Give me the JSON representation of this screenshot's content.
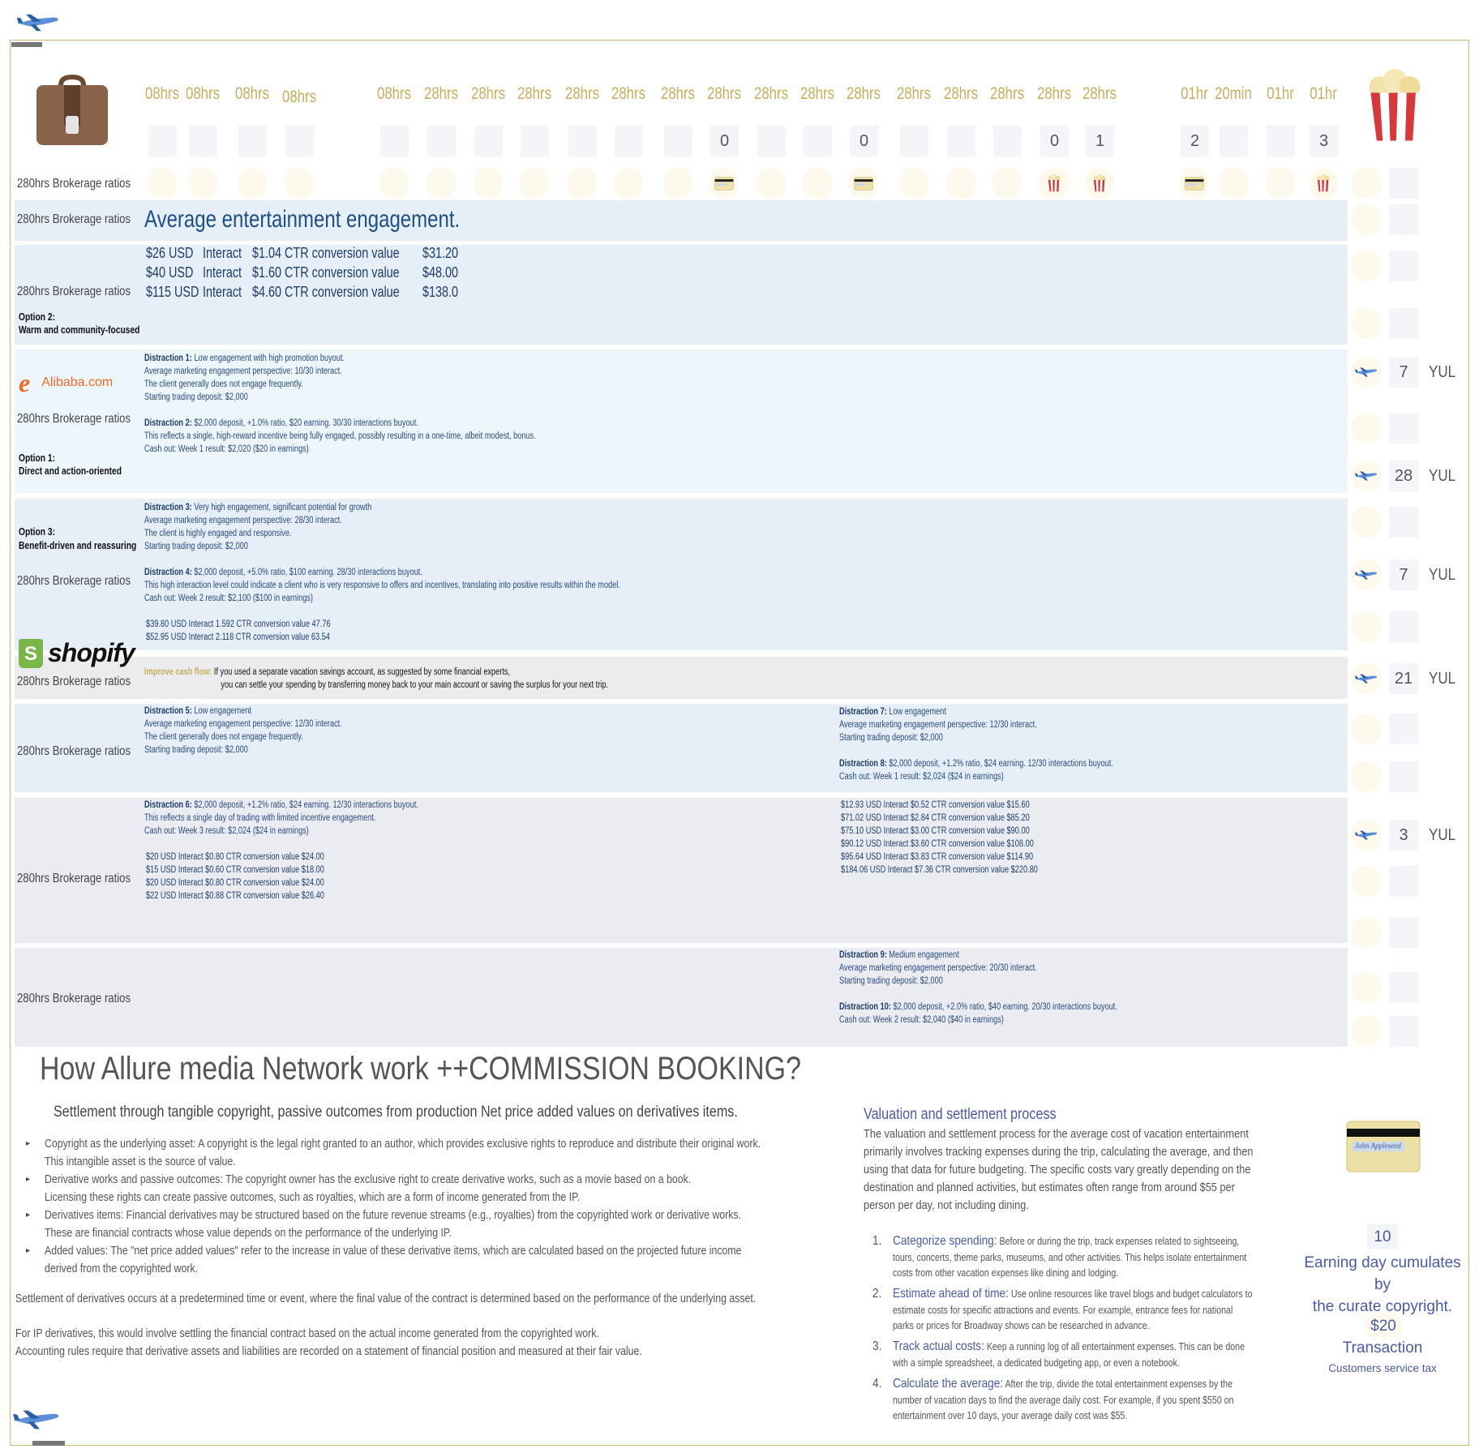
{
  "colors": {
    "accent_gold": "#c9ad5c",
    "navy": "#1f3d6b",
    "frame": "#cdb76c",
    "link_blue": "#4a5aa8"
  },
  "header": {
    "icons": {
      "left": "briefcase-icon",
      "right": "popcorn-icon",
      "top": "airplane-icon"
    },
    "row_label": "280hrs Brokerage ratios",
    "columns": [
      {
        "label": "08hrs",
        "count": "",
        "icon": ""
      },
      {
        "label": "08hrs",
        "count": "",
        "icon": ""
      },
      {
        "label": "08hrs",
        "count": "",
        "icon": ""
      },
      {
        "label": "08hrs",
        "count": "",
        "icon": ""
      },
      {
        "label": "08hrs",
        "count": "",
        "icon": ""
      },
      {
        "label": "28hrs",
        "count": "",
        "icon": ""
      },
      {
        "label": "28hrs",
        "count": "",
        "icon": ""
      },
      {
        "label": "28hrs",
        "count": "",
        "icon": ""
      },
      {
        "label": "28hrs",
        "count": "",
        "icon": ""
      },
      {
        "label": "28hrs",
        "count": "",
        "icon": ""
      },
      {
        "label": "28hrs",
        "count": "",
        "icon": ""
      },
      {
        "label": "28hrs",
        "count": "0",
        "icon": "credit-card"
      },
      {
        "label": "28hrs",
        "count": "",
        "icon": ""
      },
      {
        "label": "28hrs",
        "count": "",
        "icon": ""
      },
      {
        "label": "28hrs",
        "count": "0",
        "icon": "credit-card"
      },
      {
        "label": "28hrs",
        "count": "",
        "icon": ""
      },
      {
        "label": "28hrs",
        "count": "",
        "icon": ""
      },
      {
        "label": "28hrs",
        "count": "",
        "icon": ""
      },
      {
        "label": "28hrs",
        "count": "0",
        "icon": "popcorn"
      },
      {
        "label": "28hrs",
        "count": "1",
        "icon": "popcorn"
      },
      {
        "label": "01hr",
        "count": "2",
        "icon": "credit-card"
      },
      {
        "label": "20min",
        "count": "",
        "icon": ""
      },
      {
        "label": "01hr",
        "count": "",
        "icon": ""
      },
      {
        "label": "01hr",
        "count": "3",
        "icon": "popcorn"
      }
    ]
  },
  "row_a": {
    "label": "280hrs Brokerage ratios",
    "title": "Average entertainment engagement."
  },
  "row_b": {
    "label": "280hrs Brokerage ratios",
    "prices": [
      [
        "$26 USD",
        "Interact",
        "$1.04 CTR conversion value",
        "$31.20"
      ],
      [
        "$40 USD",
        "Interact",
        "$1.60 CTR conversion value",
        "$48.00"
      ],
      [
        "$115 USD",
        "Interact",
        "$4.60 CTR conversion value",
        "$138.0"
      ]
    ],
    "option_title": "Option 2:",
    "option_desc": "Warm and community-focused"
  },
  "row_c": {
    "label": "280hrs Brokerage ratios",
    "logo": "Alibaba.com",
    "option_title": "Option 1:",
    "option_desc": "Direct and action-oriented",
    "d1_head": "Distraction 1:",
    "d1_text": " Low engagement with high promotion buyout.",
    "d1_lines": [
      "Average marketing engagement perspective: 10/30 interact.",
      "The client generally does not engage frequently.",
      "Starting trading deposit: $2,000"
    ],
    "d2_head": "Distraction 2:",
    "d2_text": " $2,000 deposit, +1.0% ratio, $20 earning. 30/30 interactions buyout.",
    "d2_lines": [
      "This reflects a single, high-reward incentive being fully engaged, possibly resulting in a one-time, albeit modest, bonus.",
      "Cash out: Week 1 result: $2,020 ($20 in earnings)"
    ]
  },
  "row_d": {
    "label": "280hrs Brokerage ratios",
    "option_title": "Option 3:",
    "option_desc": "Benefit-driven and reassuring",
    "d3_head": "Distraction 3:",
    "d3_text": " Very high engagement, significant potential for growth",
    "d3_lines": [
      "Average marketing engagement perspective: 28/30 interact.",
      "The client is highly engaged and responsive.",
      "Starting trading deposit: $2,000"
    ],
    "d4_head": "Distraction 4:",
    "d4_text": " $2,000 deposit, +5.0% ratio, $100 earning. 28/30 interactions buyout.",
    "d4_lines": [
      "This high interaction level could indicate a client who is very responsive to offers and incentives, translating into positive results within the model.",
      "Cash out: Week 2 result: $2,100 ($100 in earnings)"
    ],
    "prices": [
      "$39.80 USD Interact  1.592 CTR conversion value 47.76",
      "$52.95 USD Interact  2.118 CTR conversion value 63.54"
    ]
  },
  "row_e": {
    "label": "280hrs Brokerage ratios",
    "logo": "shopify",
    "head": "Improve cash flow:",
    "line1": " If you used a separate vacation savings account, as suggested by some financial experts,",
    "line2": "you can settle your spending by transferring money back to your main account or saving the surplus for your next trip."
  },
  "row_f": {
    "label": "280hrs Brokerage ratios",
    "d5_head": "Distraction 5:",
    "d5_text": " Low engagement",
    "d5_lines": [
      "Average marketing engagement perspective: 12/30 interact.",
      "The client generally does not engage frequently.",
      "Starting trading deposit: $2,000"
    ],
    "d7_head": "Distraction 7:",
    "d7_text": " Low engagement",
    "d7_lines": [
      "Average marketing engagement perspective: 12/30 interact.",
      "Starting trading deposit: $2,000"
    ],
    "d8_head": "Distraction 8:",
    "d8_text": " $2,000 deposit, +1.2% ratio, $24 earning. 12/30 interactions buyout.",
    "d8_lines": [
      "Cash out: Week 1 result: $2,024 ($24 in earnings)"
    ]
  },
  "row_g": {
    "label": "280hrs Brokerage ratios",
    "d6_head": "Distraction 6:",
    "d6_text": " $2,000 deposit, +1.2% ratio, $24 earning. 12/30 interactions buyout.",
    "d6_lines": [
      "This reflects a single day of trading with limited incentive engagement.",
      "Cash out: Week 3 result: $2,024 ($24 in earnings)"
    ],
    "prices_left": [
      "$20 USD Interact $0.80 CTR conversion value $24.00",
      "$15 USD Interact $0.60 CTR conversion value $18.00",
      "$20 USD Interact $0.80 CTR conversion value $24.00",
      "$22 USD Interact $0.88 CTR conversion value $26.40"
    ],
    "prices_right": [
      "$12.93 USD Interact  $0.52 CTR conversion value $15.60",
      "$71.02 USD Interact  $2.84 CTR conversion value $85.20",
      "$75.10 USD Interact  $3.00 CTR conversion value $90.00",
      "$90.12 USD Interact  $3.60 CTR conversion value $108.00",
      "$95.64 USD Interact  $3.83 CTR conversion value $114.90",
      "$184.06 USD Interact $7.36 CTR conversion value $220.80"
    ]
  },
  "row_h": {
    "label": "280hrs Brokerage ratios",
    "d9_head": "Distraction 9:",
    "d9_text": " Medium engagement",
    "d9_lines": [
      "Average marketing engagement perspective: 20/30 interact.",
      "Starting trading deposit: $2,000"
    ],
    "d10_head": "Distraction 10:",
    "d10_text": " $2,000 deposit, +2.0% ratio, $40 earning. 20/30 interactions buyout.",
    "d10_lines": [
      "Cash out: Week 2 result: $2,040 ($40 in earnings)"
    ]
  },
  "side_items": [
    {
      "count": "",
      "code": "",
      "icon": ""
    },
    {
      "count": "",
      "code": "",
      "icon": ""
    },
    {
      "count": "",
      "code": "",
      "icon": ""
    },
    {
      "count": "",
      "code": "",
      "icon": ""
    },
    {
      "count": "7",
      "code": "YUL",
      "icon": "airplane-departure"
    },
    {
      "count": "",
      "code": "",
      "icon": ""
    },
    {
      "count": "28",
      "code": "YUL",
      "icon": "airplane-arrival"
    },
    {
      "count": "",
      "code": "",
      "icon": ""
    },
    {
      "count": "7",
      "code": "YUL",
      "icon": "airplane-arrival"
    },
    {
      "count": "",
      "code": "",
      "icon": ""
    },
    {
      "count": "21",
      "code": "YUL",
      "icon": "airplane-departure"
    },
    {
      "count": "",
      "code": "",
      "icon": ""
    },
    {
      "count": "",
      "code": "",
      "icon": ""
    },
    {
      "count": "3",
      "code": "YUL",
      "icon": "airplane-departure"
    },
    {
      "count": "",
      "code": "",
      "icon": ""
    },
    {
      "count": "",
      "code": "",
      "icon": ""
    },
    {
      "count": "",
      "code": "",
      "icon": ""
    },
    {
      "count": "",
      "code": "",
      "icon": ""
    }
  ],
  "bottom": {
    "heading": "How Allure media Network work ++COMMISSION BOOKING?",
    "subtitle": "Settlement through tangible copyright, passive outcomes from production Net price added values on derivatives items.",
    "bullets": [
      [
        "Copyright as the underlying asset: A copyright is the legal right granted to an author, which provides exclusive rights to reproduce and distribute their original work.",
        "This intangible asset is the source of value."
      ],
      [
        "Derivative works and passive outcomes: The copyright owner has the exclusive right to create derivative works, such as a movie based on a book.",
        "Licensing these rights can create passive outcomes, such as royalties, which are a form of income generated from the IP."
      ],
      [
        "Derivatives items: Financial derivatives may be structured based on the future revenue streams (e.g., royalties) from the copyrighted work or derivative works.",
        "These are financial contracts whose value depends on the performance of the underlying IP."
      ],
      [
        "Added values: The \"net price added values\" refer to the increase in value of these derivative items, which are calculated based on the projected future income",
        "derived from the copyrighted work."
      ]
    ],
    "settlement": "Settlement of derivatives occurs at a predetermined time or event, where the final value of the contract is determined based on the performance of the underlying asset.",
    "ip_lines": [
      "For IP derivatives, this would involve settling the financial contract based on the actual income generated from the copyrighted work.",
      "Accounting rules require that derivative assets and liabilities are recorded on a statement of financial position and measured at their fair value."
    ],
    "valuation_title": "Valuation and settlement process",
    "valuation_lines": [
      "The valuation and settlement process for the average cost of vacation entertainment",
      "primarily involves tracking expenses during the trip, calculating the average, and then",
      "using that data for future budgeting. The specific costs vary greatly depending on the",
      "destination and planned activities, but estimates often range from around $55 per",
      "person per day, not including dining."
    ],
    "steps": [
      {
        "num": "1.",
        "head": "Categorize spending:",
        "lines": [
          " Before or during the trip, track expenses related to sightseeing,",
          "tours, concerts, theme parks, museums, and other activities. This helps isolate entertainment",
          "costs from other vacation expenses like dining and lodging."
        ]
      },
      {
        "num": "2.",
        "head": "Estimate ahead of time:",
        "lines": [
          " Use online resources like travel blogs and budget calculators to",
          "estimate costs for specific attractions and events. For example, entrance fees for national",
          "parks or prices for Broadway shows can be researched in advance."
        ]
      },
      {
        "num": "3.",
        "head": "Track actual costs:",
        "lines": [
          " Keep a running log of all entertainment expenses. This can be done",
          "with a simple spreadsheet, a dedicated budgeting app, or even a notebook."
        ]
      },
      {
        "num": "4.",
        "head": "Calculate the average:",
        "lines": [
          " After the trip, divide the total entertainment expenses by the",
          "number of vacation days to find the average daily cost. For example, if you spent $550 on",
          "entertainment over 10 days, your average daily cost was $55."
        ]
      }
    ],
    "card_signature": "John Appleseed",
    "earning_days": "10",
    "earning_lines": [
      "Earning day cumulates by",
      "the curate copyright."
    ],
    "transaction_amount": "$20",
    "transaction_label": "Transaction",
    "transaction_note": "Customers service tax"
  }
}
